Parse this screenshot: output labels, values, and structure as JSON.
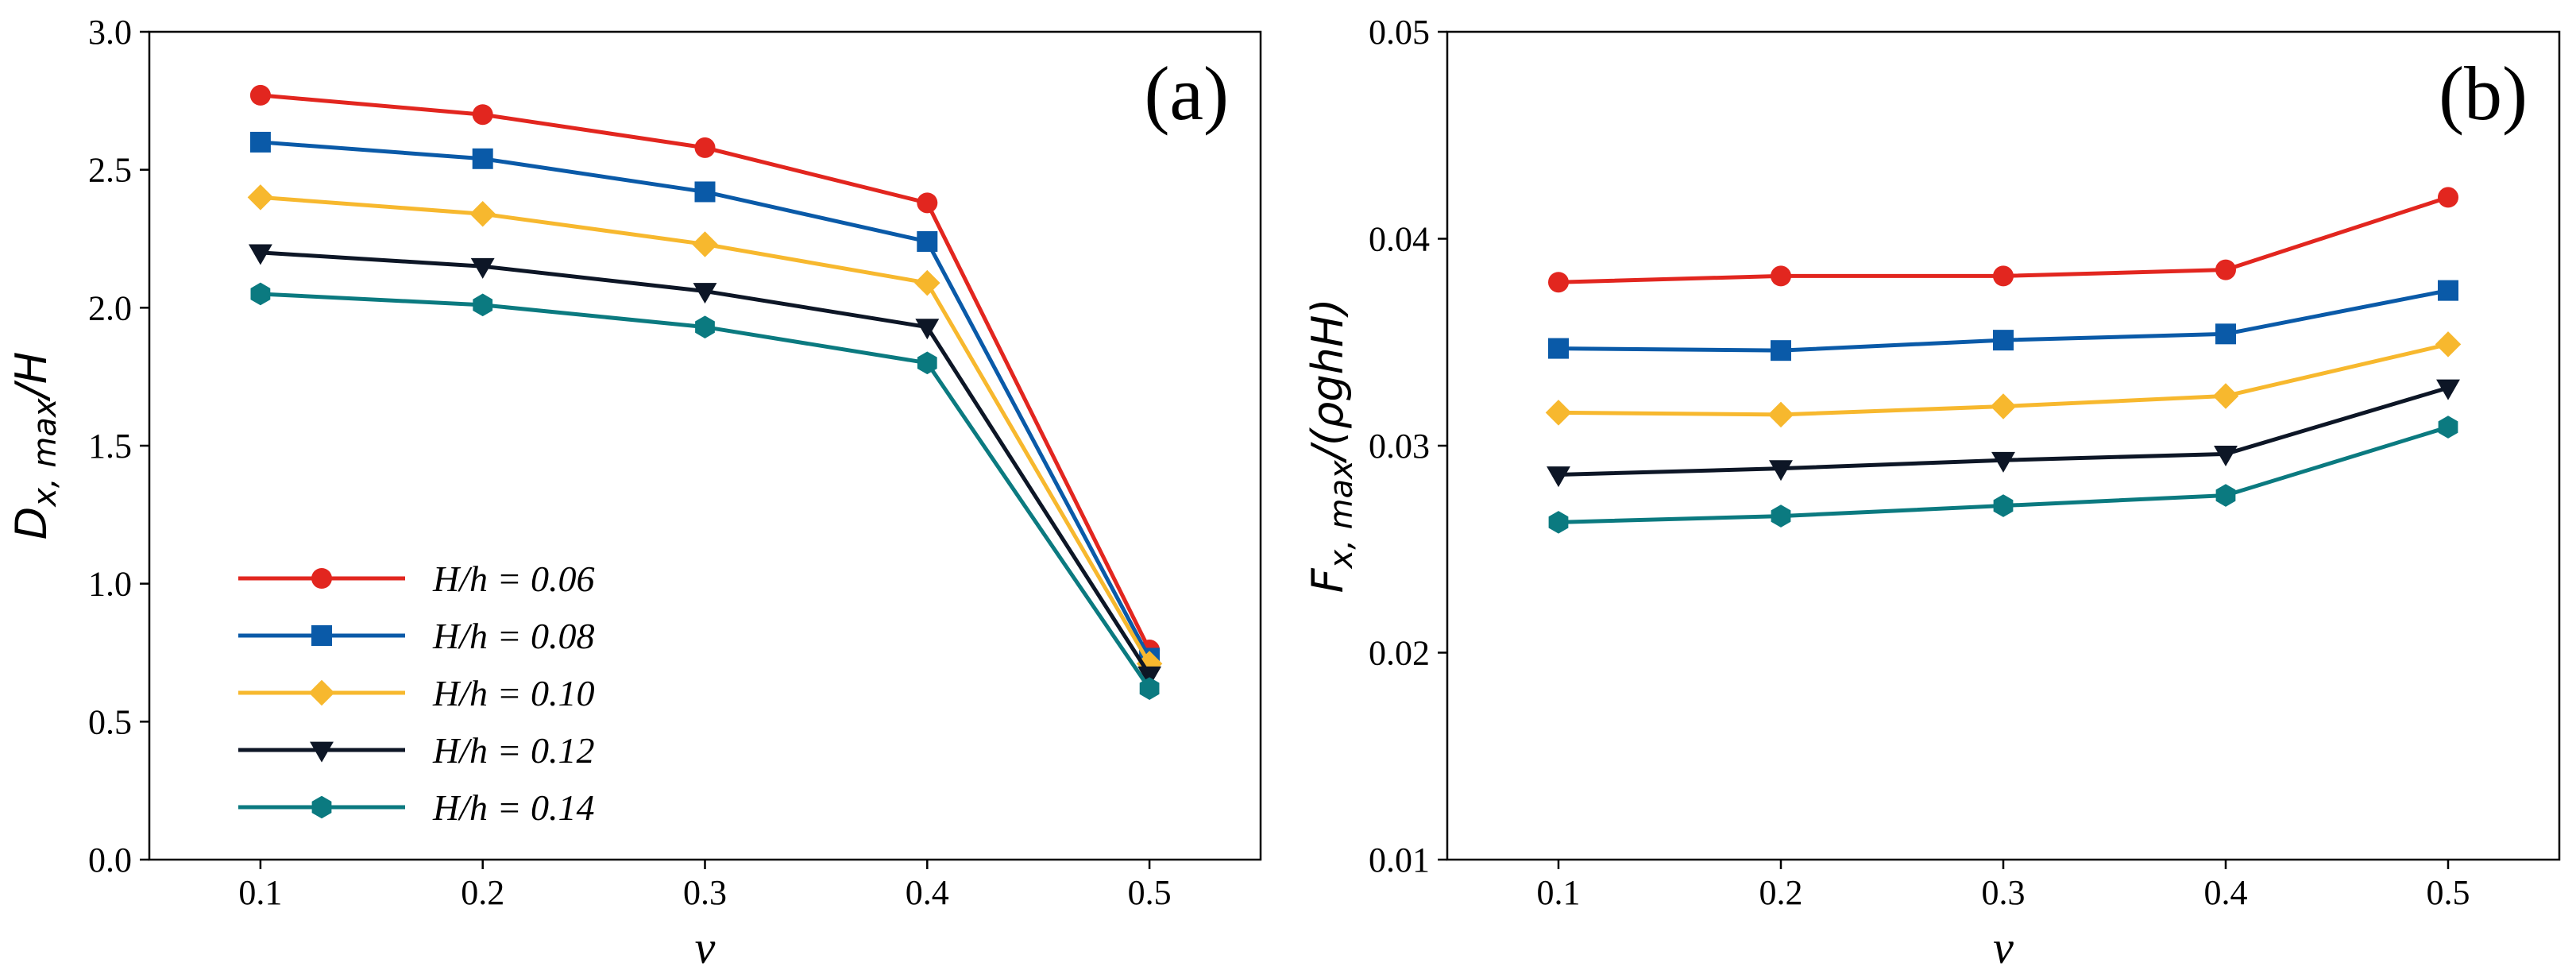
{
  "colors": {
    "H/h = 0.06": "#e2261f",
    "H/h = 0.08": "#0a5aa8",
    "H/h = 0.10": "#f7b82e",
    "H/h = 0.12": "#0d1626",
    "H/h = 0.14": "#0b7a80"
  },
  "chart_data": [
    {
      "type": "line",
      "panel_label": "(a)",
      "xlabel": "v",
      "ylabel_main": "D",
      "ylabel_sub": "x, max",
      "ylabel_tail": "/H",
      "x": [
        0.1,
        0.2,
        0.3,
        0.4,
        0.5
      ],
      "x_ticks": [
        "0.1",
        "0.2",
        "0.3",
        "0.4",
        "0.5"
      ],
      "xlim": [
        0.05,
        0.55
      ],
      "ylim": [
        0.0,
        3.0
      ],
      "y_ticks": [
        "0.0",
        "0.5",
        "1.0",
        "1.5",
        "2.0",
        "2.5",
        "3.0"
      ],
      "legend_position": "lower-left",
      "series": [
        {
          "name": "H/h = 0.06",
          "marker": "circle",
          "values": [
            2.77,
            2.7,
            2.58,
            2.38,
            0.76
          ]
        },
        {
          "name": "H/h = 0.08",
          "marker": "square",
          "values": [
            2.6,
            2.54,
            2.42,
            2.24,
            0.73
          ]
        },
        {
          "name": "H/h = 0.10",
          "marker": "diamond",
          "values": [
            2.4,
            2.34,
            2.23,
            2.09,
            0.71
          ]
        },
        {
          "name": "H/h = 0.12",
          "marker": "triangle-down",
          "values": [
            2.2,
            2.15,
            2.06,
            1.93,
            0.67
          ]
        },
        {
          "name": "H/h = 0.14",
          "marker": "hexagon",
          "values": [
            2.05,
            2.01,
            1.93,
            1.8,
            0.62
          ]
        }
      ]
    },
    {
      "type": "line",
      "panel_label": "(b)",
      "xlabel": "v",
      "ylabel_main": "F",
      "ylabel_sub": "x, max",
      "ylabel_tail": "/(ρghH)",
      "x": [
        0.1,
        0.2,
        0.3,
        0.4,
        0.5
      ],
      "x_ticks": [
        "0.1",
        "0.2",
        "0.3",
        "0.4",
        "0.5"
      ],
      "xlim": [
        0.05,
        0.55
      ],
      "ylim": [
        0.01,
        0.05
      ],
      "y_ticks": [
        "0.01",
        "0.02",
        "0.03",
        "0.04",
        "0.05"
      ],
      "series": [
        {
          "name": "H/h = 0.06",
          "marker": "circle",
          "values": [
            0.0379,
            0.0382,
            0.0382,
            0.0385,
            0.042
          ]
        },
        {
          "name": "H/h = 0.08",
          "marker": "square",
          "values": [
            0.0347,
            0.0346,
            0.0351,
            0.0354,
            0.0375
          ]
        },
        {
          "name": "H/h = 0.10",
          "marker": "diamond",
          "values": [
            0.0316,
            0.0315,
            0.0319,
            0.0324,
            0.0349
          ]
        },
        {
          "name": "H/h = 0.12",
          "marker": "triangle-down",
          "values": [
            0.0286,
            0.0289,
            0.0293,
            0.0296,
            0.0328
          ]
        },
        {
          "name": "H/h = 0.14",
          "marker": "hexagon",
          "values": [
            0.0263,
            0.0266,
            0.0271,
            0.0276,
            0.0309
          ]
        }
      ]
    }
  ]
}
